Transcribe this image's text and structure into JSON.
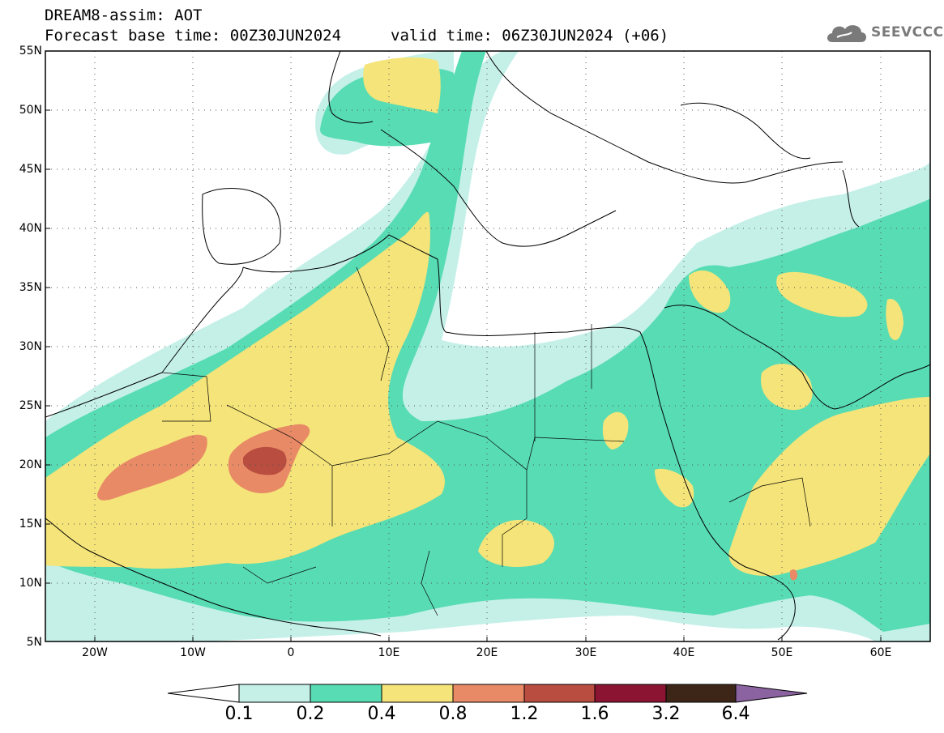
{
  "title": {
    "line1": "DREAM8-assim: AOT",
    "line2": "Forecast base time: 00Z30JUN2024",
    "valid": "valid time: 06Z30JUN2024 (+06)"
  },
  "logo": {
    "text": "SEEVCCC",
    "icon": "cloud-icon",
    "color": "#7a7a7a"
  },
  "axes": {
    "lat_labels": [
      "55N",
      "50N",
      "45N",
      "40N",
      "35N",
      "30N",
      "25N",
      "20N",
      "15N",
      "10N",
      "5N"
    ],
    "lon_labels": [
      "20W",
      "10W",
      "0",
      "10E",
      "20E",
      "30E",
      "40E",
      "50E",
      "60E"
    ]
  },
  "colorbar": {
    "labels": [
      "0.1",
      "0.2",
      "0.4",
      "0.8",
      "1.2",
      "1.6",
      "3.2",
      "6.4"
    ],
    "colors": [
      "#ffffff",
      "#c4f0e8",
      "#58dcb4",
      "#f5e479",
      "#e88a66",
      "#b94d3f",
      "#8a1432",
      "#3d2617",
      "#8b63a0"
    ]
  },
  "map_colors": {
    "level_0_1": "#c4f0e8",
    "level_0_2": "#58dcb4",
    "level_0_4": "#f5e479",
    "level_0_8": "#e88a66",
    "level_1_2": "#b94d3f"
  }
}
